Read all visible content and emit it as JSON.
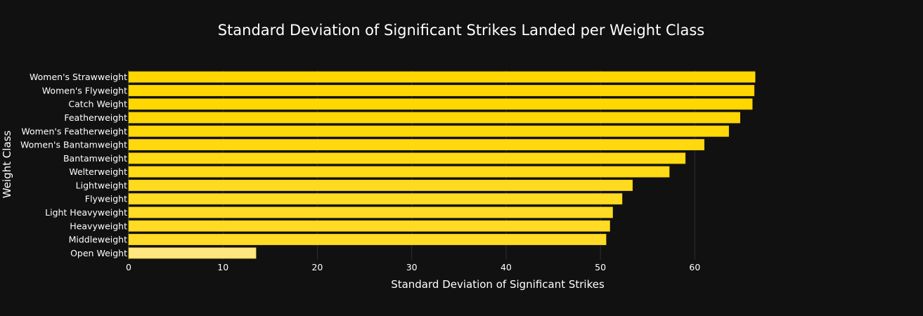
{
  "chart_data": {
    "type": "bar",
    "orientation": "horizontal",
    "title": "Standard Deviation of Significant Strikes Landed per Weight Class",
    "xlabel": "Standard Deviation of Significant Strikes",
    "ylabel": "Weight Class",
    "xlim": [
      0,
      67.2
    ],
    "xticks": [
      0,
      10,
      20,
      30,
      40,
      50,
      60
    ],
    "grid": true,
    "legend": "none",
    "categories": [
      "Women's Strawweight",
      "Women's Flyweight",
      "Catch Weight",
      "Featherweight",
      "Women's Featherweight",
      "Women's Bantamweight",
      "Bantamweight",
      "Welterweight",
      "Lightweight",
      "Flyweight",
      "Light Heavyweight",
      "Heavyweight",
      "Middleweight",
      "Open Weight"
    ],
    "values": [
      66.4,
      66.3,
      66.1,
      64.8,
      63.6,
      61.0,
      59.0,
      57.3,
      53.4,
      52.3,
      51.3,
      51.0,
      50.6,
      13.5
    ],
    "colors": {
      "background": "#111111",
      "bar_max": "#FFD700",
      "bar_min": "#FFE680",
      "bar_outline": "#e8c200",
      "text": "#ffffff",
      "grid": "#2a2f3a"
    }
  }
}
